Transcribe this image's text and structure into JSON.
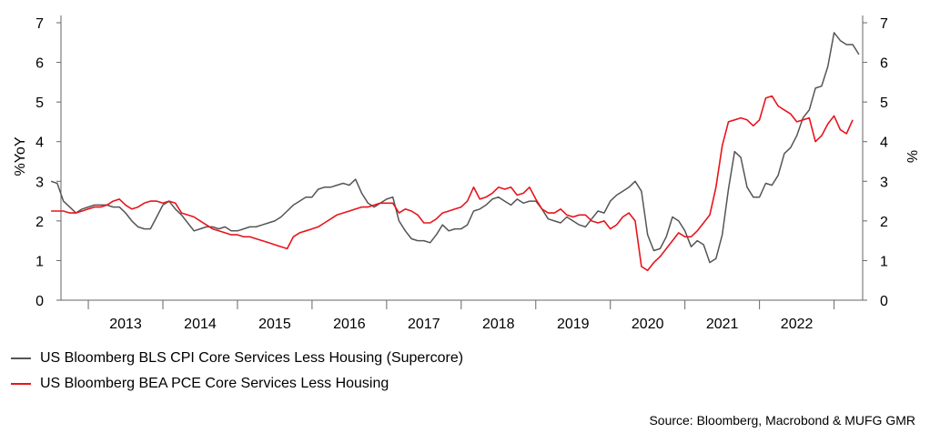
{
  "chart_data": {
    "type": "line",
    "title": "",
    "ylabel_left": "%YoY",
    "ylabel_right": "%",
    "ylim": [
      0,
      7
    ],
    "yticks": [
      "0",
      "1",
      "2",
      "3",
      "4",
      "5",
      "6",
      "7"
    ],
    "xlim": [
      "2012-07",
      "2022-12"
    ],
    "xticks": [
      "2013",
      "2014",
      "2015",
      "2016",
      "2017",
      "2018",
      "2019",
      "2020",
      "2021",
      "2022"
    ],
    "grid": false,
    "legend_position": "bottom-left",
    "series": [
      {
        "name": "US Bloomberg BLS CPI Core Services Less Housing (Supercore)",
        "color": "#555555",
        "points": [
          [
            "2012-07",
            3.0
          ],
          [
            "2012-08",
            2.95
          ],
          [
            "2012-09",
            2.5
          ],
          [
            "2012-10",
            2.35
          ],
          [
            "2012-11",
            2.2
          ],
          [
            "2012-12",
            2.3
          ],
          [
            "2013-01",
            2.35
          ],
          [
            "2013-02",
            2.4
          ],
          [
            "2013-03",
            2.4
          ],
          [
            "2013-04",
            2.4
          ],
          [
            "2013-05",
            2.35
          ],
          [
            "2013-06",
            2.35
          ],
          [
            "2013-07",
            2.2
          ],
          [
            "2013-08",
            2.0
          ],
          [
            "2013-09",
            1.85
          ],
          [
            "2013-10",
            1.8
          ],
          [
            "2013-11",
            1.8
          ],
          [
            "2013-12",
            2.1
          ],
          [
            "2014-01",
            2.4
          ],
          [
            "2014-02",
            2.5
          ],
          [
            "2014-03",
            2.3
          ],
          [
            "2014-04",
            2.15
          ],
          [
            "2014-05",
            1.95
          ],
          [
            "2014-06",
            1.75
          ],
          [
            "2014-07",
            1.8
          ],
          [
            "2014-08",
            1.85
          ],
          [
            "2014-09",
            1.85
          ],
          [
            "2014-10",
            1.8
          ],
          [
            "2014-11",
            1.85
          ],
          [
            "2014-12",
            1.75
          ],
          [
            "2015-01",
            1.75
          ],
          [
            "2015-02",
            1.8
          ],
          [
            "2015-03",
            1.85
          ],
          [
            "2015-04",
            1.85
          ],
          [
            "2015-05",
            1.9
          ],
          [
            "2015-06",
            1.95
          ],
          [
            "2015-07",
            2.0
          ],
          [
            "2015-08",
            2.1
          ],
          [
            "2015-09",
            2.25
          ],
          [
            "2015-10",
            2.4
          ],
          [
            "2015-11",
            2.5
          ],
          [
            "2015-12",
            2.6
          ],
          [
            "2016-01",
            2.6
          ],
          [
            "2016-02",
            2.8
          ],
          [
            "2016-03",
            2.85
          ],
          [
            "2016-04",
            2.85
          ],
          [
            "2016-05",
            2.9
          ],
          [
            "2016-06",
            2.95
          ],
          [
            "2016-07",
            2.9
          ],
          [
            "2016-08",
            3.05
          ],
          [
            "2016-09",
            2.7
          ],
          [
            "2016-10",
            2.45
          ],
          [
            "2016-11",
            2.35
          ],
          [
            "2016-12",
            2.45
          ],
          [
            "2017-01",
            2.55
          ],
          [
            "2017-02",
            2.6
          ],
          [
            "2017-03",
            2.0
          ],
          [
            "2017-04",
            1.75
          ],
          [
            "2017-05",
            1.55
          ],
          [
            "2017-06",
            1.5
          ],
          [
            "2017-07",
            1.5
          ],
          [
            "2017-08",
            1.45
          ],
          [
            "2017-09",
            1.65
          ],
          [
            "2017-10",
            1.9
          ],
          [
            "2017-11",
            1.75
          ],
          [
            "2017-12",
            1.8
          ],
          [
            "2018-01",
            1.8
          ],
          [
            "2018-02",
            1.9
          ],
          [
            "2018-03",
            2.25
          ],
          [
            "2018-04",
            2.3
          ],
          [
            "2018-05",
            2.4
          ],
          [
            "2018-06",
            2.55
          ],
          [
            "2018-07",
            2.6
          ],
          [
            "2018-08",
            2.5
          ],
          [
            "2018-09",
            2.4
          ],
          [
            "2018-10",
            2.55
          ],
          [
            "2018-11",
            2.45
          ],
          [
            "2018-12",
            2.5
          ],
          [
            "2019-01",
            2.5
          ],
          [
            "2019-02",
            2.3
          ],
          [
            "2019-03",
            2.05
          ],
          [
            "2019-04",
            2.0
          ],
          [
            "2019-05",
            1.95
          ],
          [
            "2019-06",
            2.1
          ],
          [
            "2019-07",
            2.0
          ],
          [
            "2019-08",
            1.9
          ],
          [
            "2019-09",
            1.85
          ],
          [
            "2019-10",
            2.05
          ],
          [
            "2019-11",
            2.25
          ],
          [
            "2019-12",
            2.2
          ],
          [
            "2020-01",
            2.5
          ],
          [
            "2020-02",
            2.65
          ],
          [
            "2020-03",
            2.75
          ],
          [
            "2020-04",
            2.85
          ],
          [
            "2020-05",
            3.0
          ],
          [
            "2020-06",
            2.75
          ],
          [
            "2020-07",
            1.65
          ],
          [
            "2020-08",
            1.25
          ],
          [
            "2020-09",
            1.3
          ],
          [
            "2020-10",
            1.6
          ],
          [
            "2020-11",
            2.1
          ],
          [
            "2020-12",
            2.0
          ],
          [
            "2021-01",
            1.75
          ],
          [
            "2021-02",
            1.35
          ],
          [
            "2021-03",
            1.5
          ],
          [
            "2021-04",
            1.4
          ],
          [
            "2021-05",
            0.95
          ],
          [
            "2021-06",
            1.05
          ],
          [
            "2021-07",
            1.65
          ],
          [
            "2021-08",
            2.8
          ],
          [
            "2021-09",
            3.75
          ],
          [
            "2021-10",
            3.6
          ],
          [
            "2021-11",
            2.85
          ],
          [
            "2021-12",
            2.6
          ],
          [
            "2022-01",
            2.6
          ],
          [
            "2022-02",
            2.95
          ],
          [
            "2022-03",
            2.9
          ],
          [
            "2022-04",
            3.15
          ],
          [
            "2022-05",
            3.7
          ],
          [
            "2022-06",
            3.85
          ],
          [
            "2022-07",
            4.15
          ],
          [
            "2022-08",
            4.6
          ],
          [
            "2022-09",
            4.8
          ],
          [
            "2022-10",
            5.35
          ],
          [
            "2022-11",
            5.4
          ],
          [
            "2022-12",
            5.9
          ],
          [
            "2023-01",
            6.75
          ],
          [
            "2023-02",
            6.55
          ],
          [
            "2023-03",
            6.45
          ],
          [
            "2023-04",
            6.45
          ],
          [
            "2023-05",
            6.2
          ]
        ]
      },
      {
        "name": "US Bloomberg BEA PCE Core Services Less Housing",
        "color": "#e8141c",
        "points": [
          [
            "2012-07",
            2.25
          ],
          [
            "2012-08",
            2.25
          ],
          [
            "2012-09",
            2.25
          ],
          [
            "2012-10",
            2.2
          ],
          [
            "2012-11",
            2.2
          ],
          [
            "2012-12",
            2.25
          ],
          [
            "2013-01",
            2.3
          ],
          [
            "2013-02",
            2.35
          ],
          [
            "2013-03",
            2.35
          ],
          [
            "2013-04",
            2.4
          ],
          [
            "2013-05",
            2.5
          ],
          [
            "2013-06",
            2.55
          ],
          [
            "2013-07",
            2.4
          ],
          [
            "2013-08",
            2.3
          ],
          [
            "2013-09",
            2.35
          ],
          [
            "2013-10",
            2.45
          ],
          [
            "2013-11",
            2.5
          ],
          [
            "2013-12",
            2.5
          ],
          [
            "2014-01",
            2.45
          ],
          [
            "2014-02",
            2.5
          ],
          [
            "2014-03",
            2.45
          ],
          [
            "2014-04",
            2.2
          ],
          [
            "2014-05",
            2.15
          ],
          [
            "2014-06",
            2.1
          ],
          [
            "2014-07",
            2.0
          ],
          [
            "2014-08",
            1.9
          ],
          [
            "2014-09",
            1.8
          ],
          [
            "2014-10",
            1.75
          ],
          [
            "2014-11",
            1.7
          ],
          [
            "2014-12",
            1.65
          ],
          [
            "2015-01",
            1.65
          ],
          [
            "2015-02",
            1.6
          ],
          [
            "2015-03",
            1.6
          ],
          [
            "2015-04",
            1.55
          ],
          [
            "2015-05",
            1.5
          ],
          [
            "2015-06",
            1.45
          ],
          [
            "2015-07",
            1.4
          ],
          [
            "2015-08",
            1.35
          ],
          [
            "2015-09",
            1.3
          ],
          [
            "2015-10",
            1.6
          ],
          [
            "2015-11",
            1.7
          ],
          [
            "2015-12",
            1.75
          ],
          [
            "2016-01",
            1.8
          ],
          [
            "2016-02",
            1.85
          ],
          [
            "2016-03",
            1.95
          ],
          [
            "2016-04",
            2.05
          ],
          [
            "2016-05",
            2.15
          ],
          [
            "2016-06",
            2.2
          ],
          [
            "2016-07",
            2.25
          ],
          [
            "2016-08",
            2.3
          ],
          [
            "2016-09",
            2.35
          ],
          [
            "2016-10",
            2.35
          ],
          [
            "2016-11",
            2.4
          ],
          [
            "2016-12",
            2.45
          ],
          [
            "2017-01",
            2.45
          ],
          [
            "2017-02",
            2.45
          ],
          [
            "2017-03",
            2.2
          ],
          [
            "2017-04",
            2.3
          ],
          [
            "2017-05",
            2.25
          ],
          [
            "2017-06",
            2.15
          ],
          [
            "2017-07",
            1.95
          ],
          [
            "2017-08",
            1.95
          ],
          [
            "2017-09",
            2.05
          ],
          [
            "2017-10",
            2.2
          ],
          [
            "2017-11",
            2.25
          ],
          [
            "2017-12",
            2.3
          ],
          [
            "2018-01",
            2.35
          ],
          [
            "2018-02",
            2.5
          ],
          [
            "2018-03",
            2.85
          ],
          [
            "2018-04",
            2.55
          ],
          [
            "2018-05",
            2.6
          ],
          [
            "2018-06",
            2.7
          ],
          [
            "2018-07",
            2.85
          ],
          [
            "2018-08",
            2.8
          ],
          [
            "2018-09",
            2.85
          ],
          [
            "2018-10",
            2.65
          ],
          [
            "2018-11",
            2.7
          ],
          [
            "2018-12",
            2.85
          ],
          [
            "2019-01",
            2.55
          ],
          [
            "2019-02",
            2.3
          ],
          [
            "2019-03",
            2.2
          ],
          [
            "2019-04",
            2.2
          ],
          [
            "2019-05",
            2.3
          ],
          [
            "2019-06",
            2.15
          ],
          [
            "2019-07",
            2.1
          ],
          [
            "2019-08",
            2.15
          ],
          [
            "2019-09",
            2.15
          ],
          [
            "2019-10",
            2.0
          ],
          [
            "2019-11",
            1.95
          ],
          [
            "2019-12",
            2.0
          ],
          [
            "2020-01",
            1.8
          ],
          [
            "2020-02",
            1.9
          ],
          [
            "2020-03",
            2.1
          ],
          [
            "2020-04",
            2.2
          ],
          [
            "2020-05",
            2.0
          ],
          [
            "2020-06",
            0.85
          ],
          [
            "2020-07",
            0.75
          ],
          [
            "2020-08",
            0.95
          ],
          [
            "2020-09",
            1.1
          ],
          [
            "2020-10",
            1.3
          ],
          [
            "2020-11",
            1.5
          ],
          [
            "2020-12",
            1.7
          ],
          [
            "2021-01",
            1.6
          ],
          [
            "2021-02",
            1.6
          ],
          [
            "2021-03",
            1.75
          ],
          [
            "2021-04",
            1.95
          ],
          [
            "2021-05",
            2.15
          ],
          [
            "2021-06",
            2.85
          ],
          [
            "2021-07",
            3.9
          ],
          [
            "2021-08",
            4.5
          ],
          [
            "2021-09",
            4.55
          ],
          [
            "2021-10",
            4.6
          ],
          [
            "2021-11",
            4.55
          ],
          [
            "2021-12",
            4.4
          ],
          [
            "2022-01",
            4.55
          ],
          [
            "2022-02",
            5.1
          ],
          [
            "2022-03",
            5.15
          ],
          [
            "2022-04",
            4.9
          ],
          [
            "2022-05",
            4.8
          ],
          [
            "2022-06",
            4.7
          ],
          [
            "2022-07",
            4.5
          ],
          [
            "2022-08",
            4.55
          ],
          [
            "2022-09",
            4.6
          ],
          [
            "2022-10",
            4.0
          ],
          [
            "2022-11",
            4.15
          ],
          [
            "2022-12",
            4.45
          ],
          [
            "2023-01",
            4.65
          ],
          [
            "2023-02",
            4.3
          ],
          [
            "2023-03",
            4.2
          ],
          [
            "2023-04",
            4.55
          ]
        ]
      }
    ]
  },
  "legend": {
    "items": [
      {
        "label": "US Bloomberg BLS CPI Core Services Less Housing (Supercore)",
        "color": "#555555"
      },
      {
        "label": "US Bloomberg BEA PCE Core Services Less Housing",
        "color": "#e8141c"
      }
    ]
  },
  "source": "Source: Bloomberg, Macrobond & MUFG GMR"
}
